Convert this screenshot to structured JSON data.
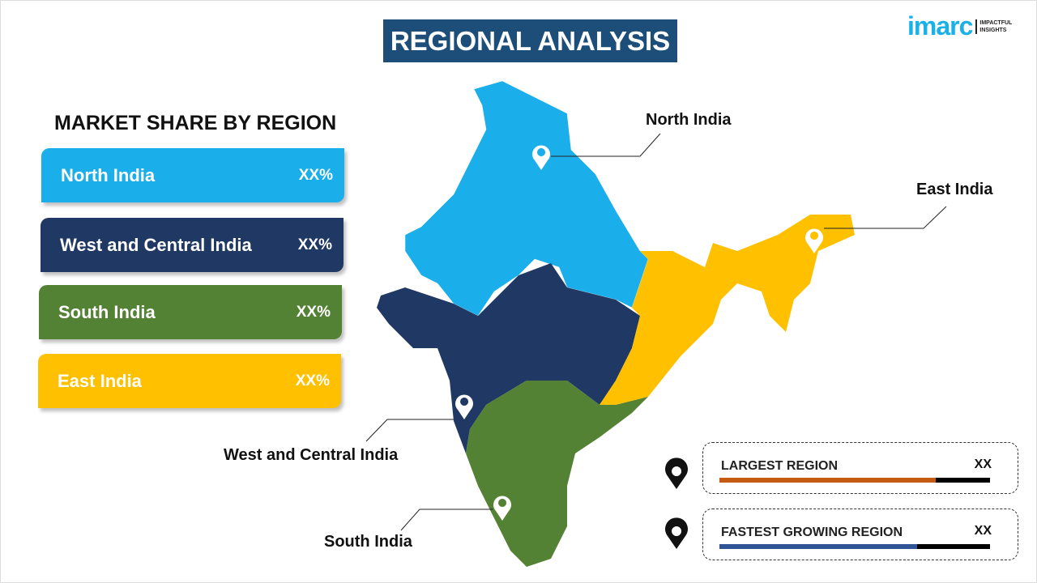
{
  "title": "REGIONAL ANALYSIS",
  "logo": {
    "brand": "imarc",
    "tagline1": "IMPACTFUL",
    "tagline2": "INSIGHTS"
  },
  "panel_title": "MARKET SHARE BY REGION",
  "regions": [
    {
      "name": "North India",
      "value": "XX%",
      "color": "#1aaeea"
    },
    {
      "name": "West and Central India",
      "value": "XX%",
      "color": "#1f3864"
    },
    {
      "name": "South India",
      "value": "XX%",
      "color": "#548235"
    },
    {
      "name": "East India",
      "value": "XX%",
      "color": "#ffc000"
    }
  ],
  "map_labels": {
    "north": "North India",
    "east": "East India",
    "west": "West and Central India",
    "south": "South India"
  },
  "stats": [
    {
      "label": "LARGEST REGION",
      "value": "XX",
      "progress": 0.8,
      "color": "#c55a11"
    },
    {
      "label": "FASTEST GROWING REGION",
      "value": "XX",
      "progress": 0.73,
      "color": "#2f5597"
    }
  ]
}
